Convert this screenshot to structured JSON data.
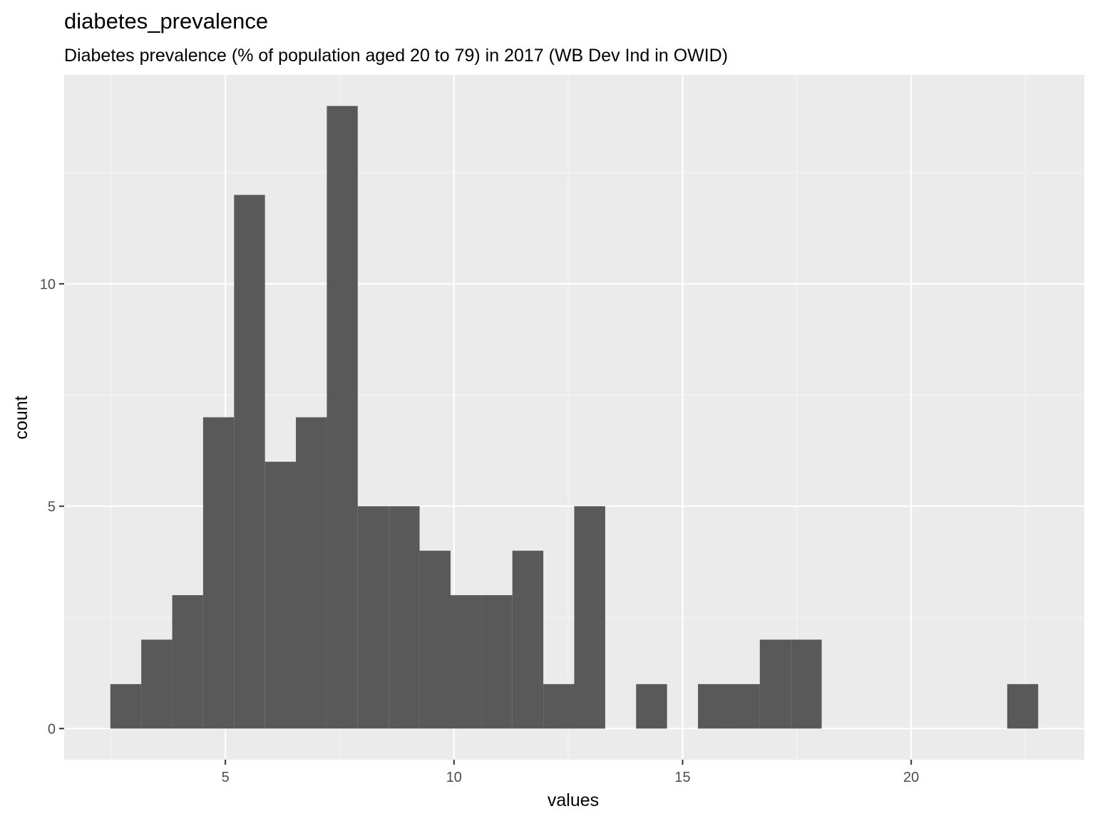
{
  "chart_data": {
    "type": "bar",
    "title": "diabetes_prevalence",
    "subtitle": "Diabetes prevalence (% of population aged 20 to 79) in 2017 (WB Dev Ind in OWID)",
    "xlabel": "values",
    "ylabel": "count",
    "bin_width": 0.6764,
    "bins": [
      {
        "x0": 2.484,
        "x1": 3.16,
        "count": 1
      },
      {
        "x0": 3.16,
        "x1": 3.837,
        "count": 2
      },
      {
        "x0": 3.837,
        "x1": 4.513,
        "count": 3
      },
      {
        "x0": 4.513,
        "x1": 5.19,
        "count": 7
      },
      {
        "x0": 5.19,
        "x1": 5.866,
        "count": 12
      },
      {
        "x0": 5.866,
        "x1": 6.542,
        "count": 6
      },
      {
        "x0": 6.542,
        "x1": 7.219,
        "count": 7
      },
      {
        "x0": 7.219,
        "x1": 7.895,
        "count": 14
      },
      {
        "x0": 7.895,
        "x1": 8.572,
        "count": 5
      },
      {
        "x0": 8.572,
        "x1": 9.248,
        "count": 5
      },
      {
        "x0": 9.248,
        "x1": 9.925,
        "count": 4
      },
      {
        "x0": 9.925,
        "x1": 10.601,
        "count": 3
      },
      {
        "x0": 10.601,
        "x1": 11.277,
        "count": 3
      },
      {
        "x0": 11.277,
        "x1": 11.954,
        "count": 4
      },
      {
        "x0": 11.954,
        "x1": 12.63,
        "count": 1
      },
      {
        "x0": 12.63,
        "x1": 13.307,
        "count": 5
      },
      {
        "x0": 13.307,
        "x1": 13.983,
        "count": 0
      },
      {
        "x0": 13.983,
        "x1": 14.66,
        "count": 1
      },
      {
        "x0": 14.66,
        "x1": 15.336,
        "count": 0
      },
      {
        "x0": 15.336,
        "x1": 16.013,
        "count": 1
      },
      {
        "x0": 16.013,
        "x1": 16.689,
        "count": 1
      },
      {
        "x0": 16.689,
        "x1": 17.365,
        "count": 2
      },
      {
        "x0": 17.365,
        "x1": 18.042,
        "count": 2
      },
      {
        "x0": 18.042,
        "x1": 18.718,
        "count": 0
      },
      {
        "x0": 18.718,
        "x1": 19.395,
        "count": 0
      },
      {
        "x0": 19.395,
        "x1": 20.071,
        "count": 0
      },
      {
        "x0": 20.071,
        "x1": 20.748,
        "count": 0
      },
      {
        "x0": 20.748,
        "x1": 21.424,
        "count": 0
      },
      {
        "x0": 21.424,
        "x1": 22.1,
        "count": 0
      },
      {
        "x0": 22.1,
        "x1": 22.777,
        "count": 1
      }
    ],
    "xlim": [
      1.474,
      23.786
    ],
    "ylim": [
      -0.7,
      14.7
    ],
    "xticks": [
      5,
      10,
      15,
      20
    ],
    "yticks": [
      0,
      5,
      10
    ],
    "x_tick_labels": [
      "5",
      "10",
      "15",
      "20"
    ],
    "y_tick_labels": [
      "0",
      "5",
      "10"
    ],
    "grid": true,
    "colors": {
      "panel_background": "#ebebeb",
      "grid_major": "#ffffff",
      "grid_minor": "#f5f5f5",
      "bar_fill": "#595959",
      "tick_text": "#4d4d4d",
      "tick_mark": "#333333"
    }
  }
}
